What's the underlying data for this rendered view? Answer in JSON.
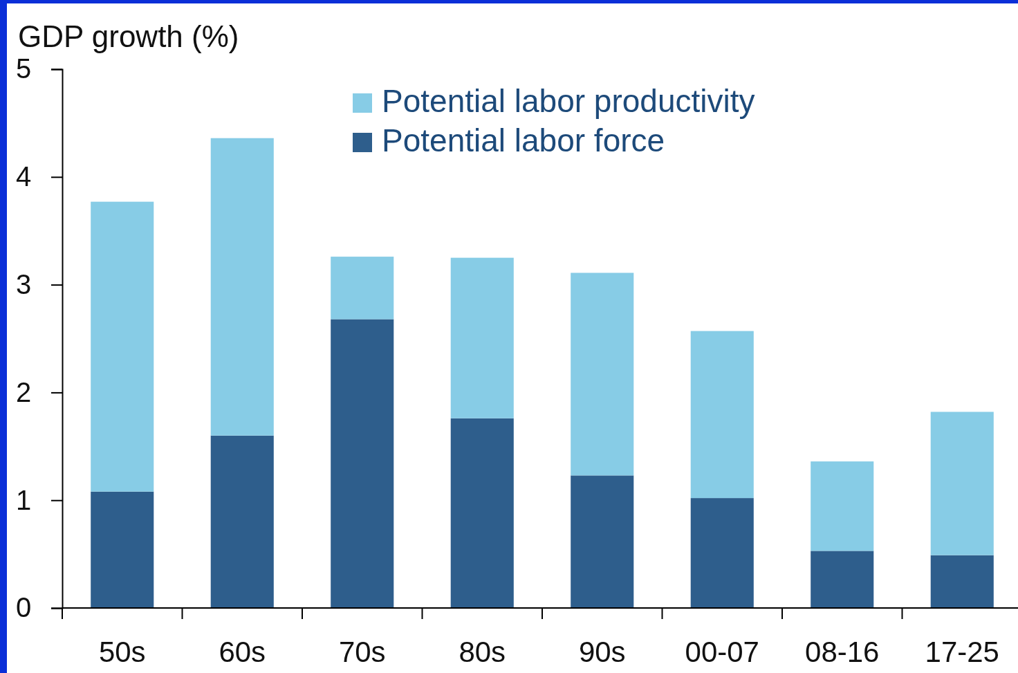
{
  "chart_data": {
    "type": "bar",
    "ylabel": "GDP growth (%)",
    "stacked": true,
    "categories": [
      "50s",
      "60s",
      "70s",
      "80s",
      "90s",
      "00-07",
      "08-16",
      "17-25"
    ],
    "series": [
      {
        "name": "Potential labor force",
        "color": "#2e5e8c",
        "values": [
          1.08,
          1.6,
          2.68,
          1.76,
          1.23,
          1.02,
          0.53,
          0.49
        ]
      },
      {
        "name": "Potential labor productivity",
        "color": "#87cce6",
        "values": [
          2.69,
          2.76,
          0.58,
          1.49,
          1.88,
          1.55,
          0.83,
          1.33
        ]
      }
    ],
    "ylim": [
      0,
      5
    ],
    "yticks": [
      0,
      1,
      2,
      3,
      4,
      5
    ],
    "grid": false,
    "legend": "top"
  }
}
